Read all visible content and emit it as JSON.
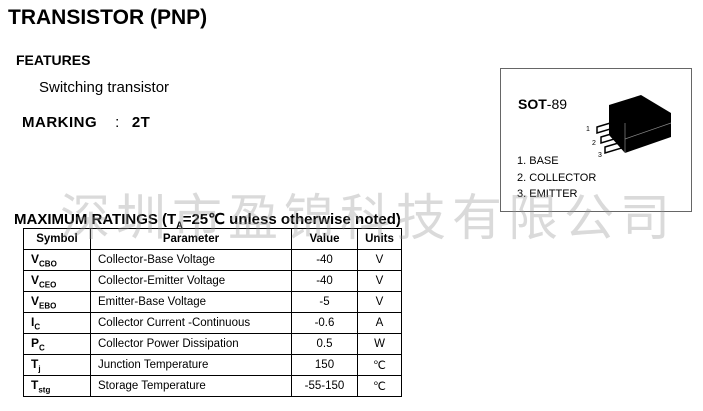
{
  "title": "TRANSISTOR (PNP)",
  "features": {
    "heading": "FEATURES",
    "text": "Switching transistor"
  },
  "marking": {
    "label": "MARKING",
    "separator": ":",
    "value": "2T"
  },
  "package": {
    "name_bold": "SOT",
    "name_rest": "-89",
    "pin_numbers": [
      "1",
      "2",
      "3"
    ],
    "pins": [
      "1.  BASE",
      "2.  COLLECTOR",
      "3.  EMITTER"
    ]
  },
  "watermark": "深圳市盈锦科技有限公司",
  "ratings": {
    "heading_main": "MAXIMUM RATINGS (T",
    "heading_sub": "A",
    "heading_rest": "=25℃ unless otherwise noted)",
    "headers": [
      "Symbol",
      "Parameter",
      "Value",
      "Units"
    ],
    "rows": [
      {
        "sym": "V",
        "sub": "CBO",
        "param": "Collector-Base Voltage",
        "value": "-40",
        "unit": "V"
      },
      {
        "sym": "V",
        "sub": "CEO",
        "param": "Collector-Emitter Voltage",
        "value": "-40",
        "unit": "V"
      },
      {
        "sym": "V",
        "sub": "EBO",
        "param": "Emitter-Base Voltage",
        "value": "-5",
        "unit": "V"
      },
      {
        "sym": "I",
        "sub": "C",
        "param": "Collector Current -Continuous",
        "value": "-0.6",
        "unit": "A"
      },
      {
        "sym": "P",
        "sub": "C",
        "param": "Collector Power Dissipation",
        "value": "0.5",
        "unit": "W"
      },
      {
        "sym": "T",
        "sub": "j",
        "param": "Junction Temperature",
        "value": "150",
        "unit": "℃"
      },
      {
        "sym": "T",
        "sub": "stg",
        "param": "Storage Temperature",
        "value": "-55-150",
        "unit": "℃"
      }
    ]
  }
}
